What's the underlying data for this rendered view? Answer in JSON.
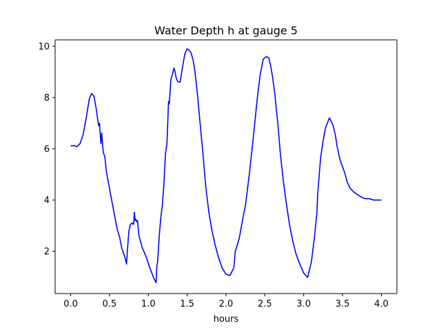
{
  "chart_data": {
    "type": "line",
    "title": "Water Depth h at gauge 5",
    "xlabel": "hours",
    "ylabel": "",
    "xlim": [
      -0.2,
      4.2
    ],
    "ylim": [
      0.35,
      10.25
    ],
    "xticks": [
      0.0,
      0.5,
      1.0,
      1.5,
      2.0,
      2.5,
      3.0,
      3.5,
      4.0
    ],
    "xtick_labels": [
      "0.0",
      "0.5",
      "1.0",
      "1.5",
      "2.0",
      "2.5",
      "3.0",
      "3.5",
      "4.0"
    ],
    "yticks": [
      2,
      4,
      6,
      8,
      10
    ],
    "ytick_labels": [
      "2",
      "4",
      "6",
      "8",
      "10"
    ],
    "grid": false,
    "series": [
      {
        "color": "#0000ff",
        "x": [
          0.0,
          0.05,
          0.08,
          0.12,
          0.16,
          0.2,
          0.24,
          0.27,
          0.3,
          0.33,
          0.36,
          0.37,
          0.38,
          0.39,
          0.4,
          0.41,
          0.42,
          0.44,
          0.46,
          0.5,
          0.55,
          0.6,
          0.63,
          0.66,
          0.7,
          0.72,
          0.73,
          0.75,
          0.77,
          0.79,
          0.81,
          0.82,
          0.83,
          0.84,
          0.85,
          0.86,
          0.88,
          0.92,
          0.97,
          1.02,
          1.07,
          1.1,
          1.11,
          1.12,
          1.14,
          1.16,
          1.18,
          1.2,
          1.22,
          1.24,
          1.26,
          1.27,
          1.29,
          1.31,
          1.33,
          1.34,
          1.36,
          1.38,
          1.41,
          1.44,
          1.47,
          1.5,
          1.52,
          1.55,
          1.58,
          1.6,
          1.63,
          1.66,
          1.7,
          1.74,
          1.78,
          1.82,
          1.86,
          1.9,
          1.95,
          2.0,
          2.05,
          2.1,
          2.12,
          2.14,
          2.17,
          2.2,
          2.25,
          2.3,
          2.35,
          2.4,
          2.44,
          2.48,
          2.52,
          2.55,
          2.57,
          2.6,
          2.63,
          2.67,
          2.7,
          2.74,
          2.78,
          2.82,
          2.86,
          2.9,
          2.95,
          3.0,
          3.05,
          3.1,
          3.14,
          3.17,
          3.18,
          3.2,
          3.22,
          3.25,
          3.28,
          3.31,
          3.33,
          3.35,
          3.38,
          3.41,
          3.43,
          3.45,
          3.47,
          3.5,
          3.53,
          3.56,
          3.6,
          3.65,
          3.7,
          3.75,
          3.8,
          3.85,
          3.9,
          3.95,
          4.0
        ],
        "y": [
          6.12,
          6.12,
          6.08,
          6.2,
          6.55,
          7.2,
          7.95,
          8.16,
          8.05,
          7.55,
          6.9,
          7.0,
          6.6,
          6.2,
          6.62,
          6.2,
          5.85,
          5.7,
          5.1,
          4.45,
          3.65,
          2.85,
          2.55,
          2.1,
          1.75,
          1.5,
          2.0,
          2.8,
          3.05,
          3.1,
          3.05,
          3.52,
          3.2,
          3.25,
          3.15,
          3.2,
          2.6,
          2.15,
          1.8,
          1.35,
          0.95,
          0.78,
          1.45,
          1.6,
          2.6,
          3.3,
          3.8,
          4.6,
          5.8,
          6.2,
          7.85,
          7.75,
          8.7,
          8.9,
          9.15,
          9.05,
          8.75,
          8.62,
          8.6,
          9.2,
          9.7,
          9.9,
          9.86,
          9.75,
          9.4,
          9.0,
          8.2,
          7.2,
          5.9,
          4.5,
          3.5,
          2.8,
          2.25,
          1.8,
          1.35,
          1.1,
          1.05,
          1.35,
          2.0,
          2.2,
          2.5,
          3.0,
          3.8,
          5.0,
          6.4,
          7.9,
          8.9,
          9.5,
          9.6,
          9.55,
          9.3,
          8.8,
          8.1,
          6.9,
          5.8,
          4.7,
          3.8,
          3.0,
          2.4,
          1.9,
          1.5,
          1.15,
          0.98,
          1.6,
          2.6,
          3.5,
          4.2,
          5.0,
          5.7,
          6.3,
          6.8,
          7.05,
          7.2,
          7.1,
          6.9,
          6.5,
          6.1,
          5.8,
          5.55,
          5.3,
          5.05,
          4.7,
          4.45,
          4.3,
          4.2,
          4.1,
          4.05,
          4.05,
          4.0,
          4.0,
          4.0
        ]
      }
    ]
  }
}
